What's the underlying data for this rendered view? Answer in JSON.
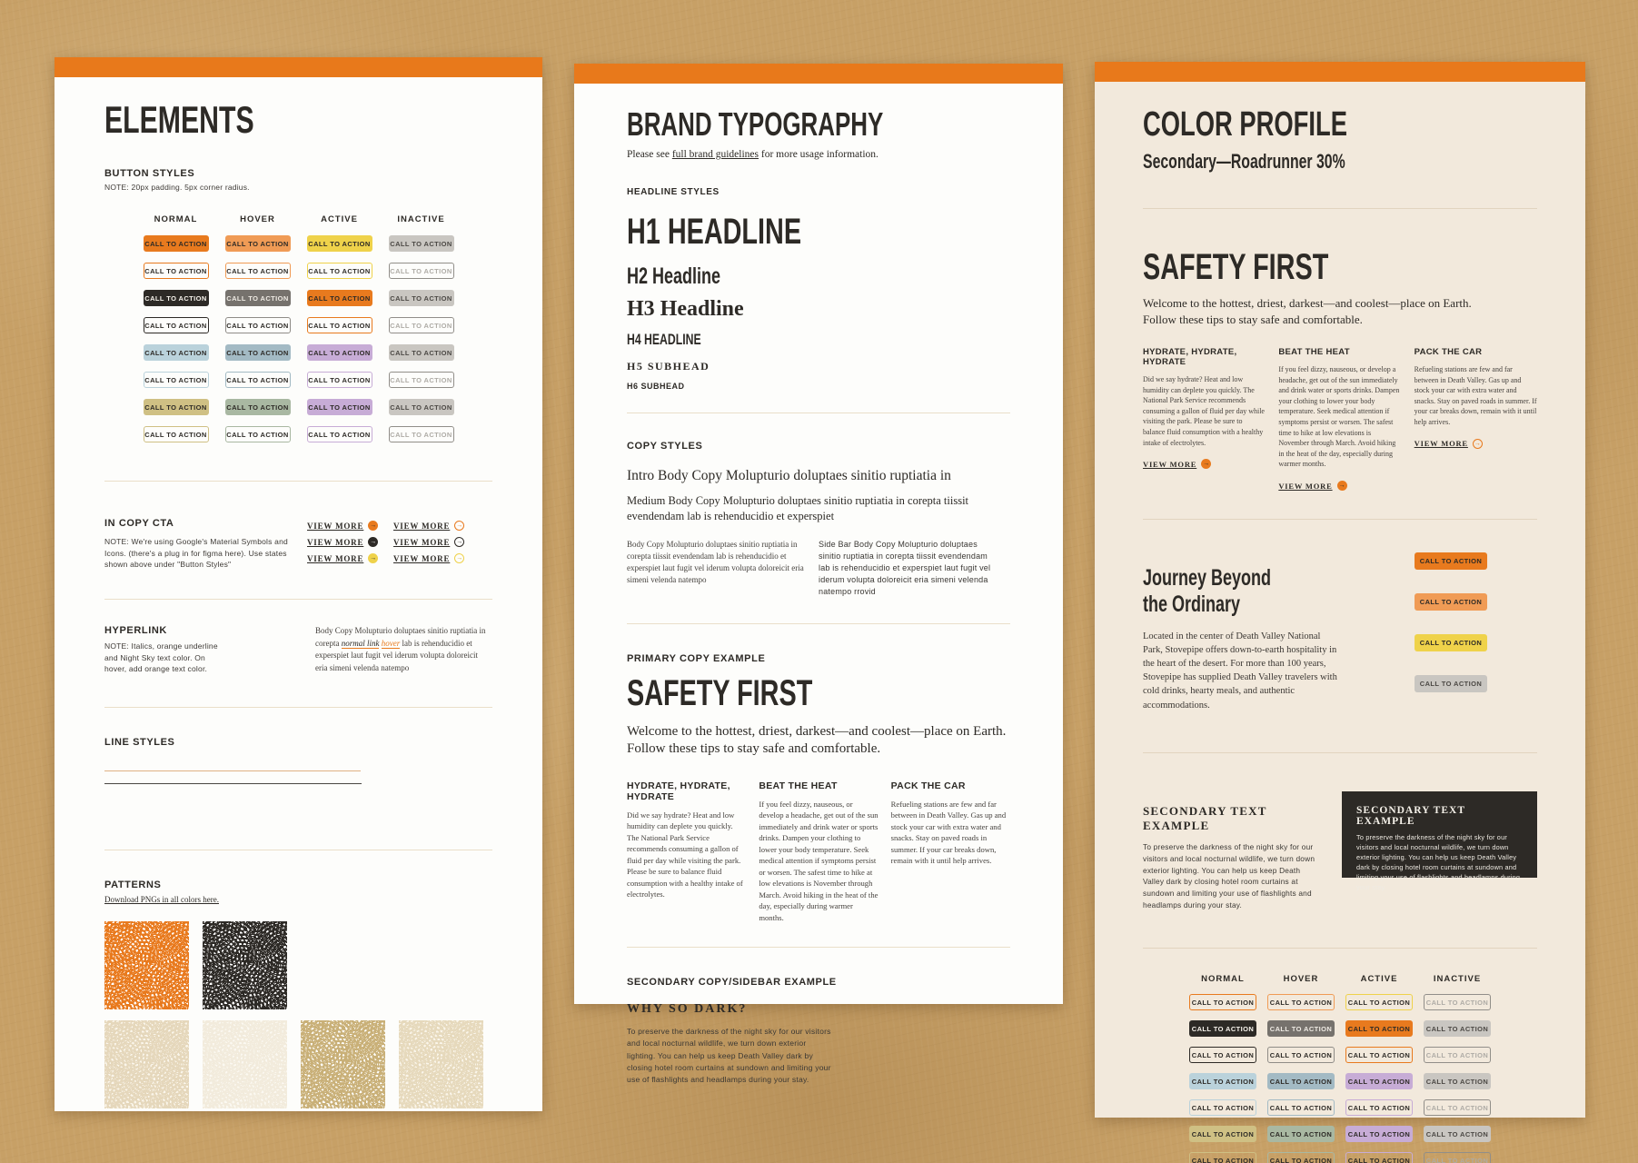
{
  "palette": {
    "orange": "#E87A1E",
    "orange_light": "#F09B55",
    "yellow": "#EFD24A",
    "night_sky": "#2D2A26",
    "gray_mid": "#76726D",
    "gray_fill": "#C9C6C1",
    "blue": "#BAD2DB",
    "blue_gray": "#A3BAC4",
    "purple": "#C7ACD6",
    "khaki": "#CFC084",
    "sage": "#A9B8A2",
    "cream": "#F2E9DC"
  },
  "shared": {
    "cta_label": "CALL TO ACTION",
    "view_more": "VIEW MORE",
    "state_columns": [
      "NORMAL",
      "HOVER",
      "ACTIVE",
      "INACTIVE"
    ],
    "safety": {
      "title": "SAFETY FIRST",
      "intro": "Welcome to the hottest, driest, darkest—and coolest—place on Earth. Follow these tips to stay safe and comfortable.",
      "columns": [
        {
          "head": "HYDRATE, HYDRATE, HYDRATE",
          "body": "Did we say hydrate? Heat and low humidity can deplete you quickly. The National Park Service recommends consuming a gallon of fluid per day while visiting the park. Please be sure to balance fluid consumption with a healthy intake of electrolytes."
        },
        {
          "head": "BEAT THE HEAT",
          "body": "If you feel dizzy, nauseous, or develop a headache, get out of the sun immediately and drink water or sports drinks. Dampen your clothing to lower your body temperature. Seek medical attention if symptoms persist or worsen. The safest time to hike at low elevations is November through March. Avoid hiking in the heat of the day, especially during warmer months."
        },
        {
          "head": "PACK THE CAR",
          "body": "Refueling stations are few and far between in Death Valley. Gas up and stock your car with extra water and snacks. Stay on paved roads in summer. If your car breaks down, remain with it until help arrives."
        }
      ]
    },
    "dark_sky_copy": "To preserve the darkness of the night sky for our visitors and local nocturnal wildlife, we turn down exterior lighting. You can help us keep Death Valley dark by closing hotel room curtains at sundown and limiting your use of flashlights and headlamps during your stay."
  },
  "elements_panel": {
    "title": "ELEMENTS",
    "button_styles_label": "BUTTON STYLES",
    "button_styles_note": "NOTE: 20px padding. 5px corner radius.",
    "grid_rows": [
      [
        "fill-orange",
        "fill-orangeLight",
        "fill-yellow",
        "fill-gray"
      ],
      [
        "line-orange",
        "line-orangeLight",
        "line-yellow",
        "line-dim"
      ],
      [
        "fill-dark",
        "fill-midgray",
        "fill-orange",
        "fill-gray"
      ],
      [
        "line-dark",
        "line-midgray",
        "line-orange",
        "line-dim"
      ],
      [
        "fill-blue",
        "fill-bluegray",
        "fill-purple",
        "fill-gray"
      ],
      [
        "line-blue",
        "line-bluegray",
        "line-purple",
        "line-dim"
      ],
      [
        "fill-khaki",
        "fill-sage",
        "fill-purple",
        "fill-gray"
      ],
      [
        "line-khaki",
        "line-sage",
        "line-purple",
        "line-dim"
      ]
    ],
    "in_copy_cta": {
      "label": "IN COPY CTA",
      "note": "NOTE: We're using Google's Material Symbols and Icons. (there's a plug in for figma here). Use states shown above under \"Button Styles\"",
      "variants": [
        "fill-orange",
        "fill-dark",
        "fill-yellow",
        "line-orange",
        "line-dark",
        "line-yellow"
      ]
    },
    "hyperlink": {
      "label": "HYPERLINK",
      "note": "NOTE: Italics, orange underline and Night Sky text color. On hover, add orange text color.",
      "sample_prefix": "Body Copy Molupturio doluptaes sinitio ruptiatia in corepta ",
      "link_normal": "normal link",
      "link_hover": "hover",
      "sample_suffix": " lab is rehenducidio et experspiet laut fugit vel iderum volupta doloreicit eria simeni velenda natempo"
    },
    "line_styles_label": "LINE STYLES",
    "patterns": {
      "label": "PATTERNS",
      "download_link": "Download PNGs in all colors here.",
      "row1": [
        {
          "name": "orange",
          "stripe": "#E87A1E",
          "bg": "#FFFFFF"
        },
        {
          "name": "night-sky",
          "stripe": "#2D2A26",
          "bg": "#FFFFFF"
        }
      ],
      "row2": [
        {
          "name": "cream",
          "stripe": "#E5D7BB",
          "bg": "#FAF5EA"
        },
        {
          "name": "faint-cream",
          "stripe": "#F2EBDC",
          "bg": "#FBF8F1"
        },
        {
          "name": "tan",
          "stripe": "#C9B078",
          "bg": "#FCFAF5"
        },
        {
          "name": "light-tan",
          "stripe": "#E6D9BC",
          "bg": "#FAF5EA"
        }
      ]
    }
  },
  "typography_panel": {
    "title": "BRAND TYPOGRAPHY",
    "subtitle_prefix": "Please see ",
    "subtitle_link": "full brand guidelines",
    "subtitle_suffix": " for more usage information.",
    "headline_styles_label": "HEADLINE STYLES",
    "h1": "H1 HEADLINE",
    "h2": "H2 Headline",
    "h3": "H3 Headline",
    "h4": "H4 HEADLINE",
    "h5": "H5 SUBHEAD",
    "h6": "H6 SUBHEAD",
    "copy_styles_label": "COPY STYLES",
    "intro_copy": "Intro Body Copy Molupturio doluptaes sinitio ruptiatia in",
    "medium_copy": "Medium Body Copy Molupturio doluptaes sinitio ruptiatia in corepta tiissit evendendam lab is rehenducidio et experspiet",
    "body_copy": "Body Copy Molupturio doluptaes sinitio ruptiatia in corepta tiissit evendendam lab is rehenducidio et experspiet laut fugit vel iderum volupta doloreicit eria simeni velenda natempo",
    "sidebar_copy": "Side Bar Body Copy Molupturio doluptaes sinitio ruptiatia in corepta tiissit evendendam lab is rehenducidio et experspiet laut fugit vel iderum volupta doloreicit eria simeni velenda natempo rrovid",
    "primary_example_label": "PRIMARY COPY EXAMPLE",
    "secondary_example_label": "SECONDARY COPY/SIDEBAR EXAMPLE",
    "sidebar_title": "WHY SO DARK?"
  },
  "color_panel": {
    "title": "COLOR PROFILE",
    "subtitle": "Secondary—Roadrunner 30%",
    "journey": {
      "title": "Journey Beyond\nthe Ordinary",
      "body": "Located in the center of Death Valley National Park, Stovepipe offers down-to-earth hospitality in the heart of the desert. For more than 100 years, Stovepipe has supplied Death Valley travelers with cold drinks, hearty meals, and authentic accommodations.",
      "cta_variants": [
        "fill-orange",
        "fill-orangeLight",
        "fill-yellow",
        "fill-gray"
      ]
    },
    "secondary_example_title": "SECONDARY TEXT EXAMPLE",
    "grid_rows": [
      [
        "line-orange",
        "line-orangeLight",
        "line-yellow",
        "line-dim"
      ],
      [
        "fill-dark",
        "fill-midgray",
        "fill-orange",
        "fill-gray"
      ],
      [
        "line-dark",
        "line-midgray",
        "line-orange",
        "line-dim"
      ],
      [
        "fill-blue",
        "fill-bluegray",
        "fill-purple",
        "fill-gray"
      ],
      [
        "line-blue",
        "line-bluegray",
        "line-purple",
        "line-dim"
      ],
      [
        "fill-khaki",
        "fill-sage",
        "fill-purple",
        "fill-gray"
      ],
      [
        "line-khaki",
        "line-sage",
        "line-purple",
        "line-dim"
      ]
    ]
  }
}
